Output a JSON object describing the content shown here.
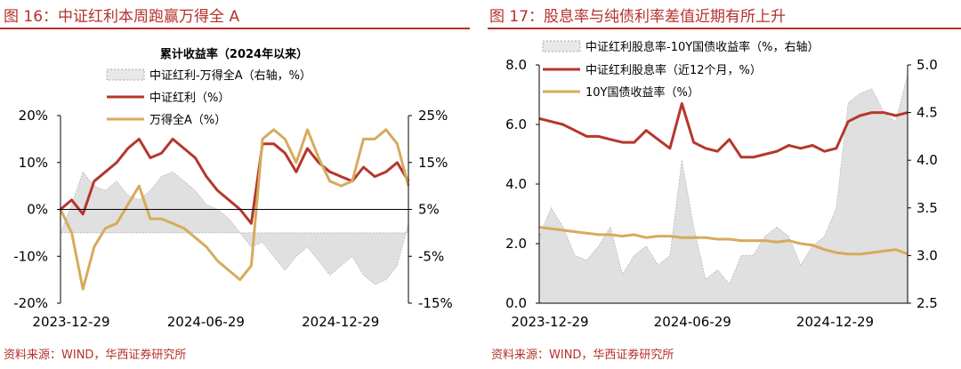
{
  "left": {
    "title": "图 16：中证红利本周跑赢万得全 A",
    "source": "资料来源：WIND，华西证券研究所"
  },
  "right": {
    "title": "图 17：股息率与纯债利率差值近期有所上升",
    "source": "资料来源：WIND，华西证券研究所"
  },
  "colors": {
    "dividend": "#b5372c",
    "wind": "#d6ab5c",
    "area": "#e0e0e0",
    "accent": "#b5302a"
  },
  "chart_data": [
    {
      "type": "line",
      "title": "累计收益率（2024年以来）",
      "x_tick_labels": [
        "2023-12-29",
        "2024-06-29",
        "2024-12-29"
      ],
      "y_left": {
        "ticks": [
          20,
          10,
          0,
          -10,
          -20
        ],
        "tick_labels": [
          "20%",
          "10%",
          "0%",
          "-10%",
          "-20%"
        ],
        "range": [
          -20,
          20
        ]
      },
      "y_right": {
        "ticks": [
          25,
          15,
          5,
          -5,
          -15
        ],
        "tick_labels": [
          "25%",
          "15%",
          "5%",
          "-5%",
          "-15%"
        ],
        "range": [
          -15,
          25
        ]
      },
      "legend": [
        "中证红利-万得全A（右轴，%）",
        "中证红利（%）",
        "万得全A（%）"
      ],
      "grid": false,
      "x_months": [
        0,
        0.5,
        1,
        1.5,
        2,
        2.5,
        3,
        3.5,
        4,
        4.5,
        5,
        5.5,
        6,
        6.5,
        7,
        7.5,
        8,
        8.5,
        9,
        9.5,
        10,
        10.5,
        11,
        11.5,
        12,
        12.5,
        13,
        13.5,
        14,
        14.5,
        15,
        15.5
      ],
      "series": [
        {
          "name": "中证红利-万得全A（右轴，%）",
          "kind": "area",
          "axis": "right",
          "values": [
            0,
            6,
            13,
            10,
            9,
            11,
            8,
            7,
            9,
            12,
            13,
            11,
            9,
            6,
            5,
            3,
            0,
            -3,
            -2,
            -5,
            -8,
            -5,
            -3,
            -6,
            -9,
            -7,
            -5,
            -9,
            -11,
            -10,
            -7,
            2
          ]
        },
        {
          "name": "中证红利（%）",
          "kind": "line",
          "axis": "left",
          "values": [
            0,
            2,
            -1,
            6,
            8,
            10,
            13,
            15,
            11,
            12,
            15,
            13,
            11,
            7,
            4,
            2,
            0,
            -3,
            14,
            14,
            12,
            8,
            13,
            10,
            8,
            7,
            6,
            9,
            7,
            8,
            10,
            6
          ]
        },
        {
          "name": "万得全A（%）",
          "kind": "line",
          "axis": "left",
          "values": [
            0,
            -5,
            -17,
            -8,
            -4,
            -3,
            1,
            5,
            -2,
            -2,
            -3,
            -4,
            -6,
            -8,
            -11,
            -13,
            -15,
            -12,
            15,
            17,
            15,
            10,
            17,
            11,
            6,
            5,
            6,
            15,
            15,
            17,
            14,
            5
          ]
        }
      ]
    },
    {
      "type": "line",
      "x_tick_labels": [
        "2023-12-29",
        "2024-06-29",
        "2024-12-29"
      ],
      "y_left": {
        "ticks": [
          8.0,
          6.0,
          4.0,
          2.0,
          0.0
        ],
        "tick_labels": [
          "8.0",
          "6.0",
          "4.0",
          "2.0",
          "0.0"
        ],
        "range": [
          0,
          8
        ]
      },
      "y_right": {
        "ticks": [
          5.0,
          4.5,
          4.0,
          3.5,
          3.0,
          2.5
        ],
        "tick_labels": [
          "5.0",
          "4.5",
          "4.0",
          "3.5",
          "3.0",
          "2.5"
        ],
        "range": [
          2.5,
          5.0
        ]
      },
      "legend": [
        "中证红利股息率-10Y国债收益率（%，右轴）",
        "中证红利股息率（近12个月，%）",
        "10Y国债收益率（%）"
      ],
      "grid": false,
      "x_months": [
        0,
        0.5,
        1,
        1.5,
        2,
        2.5,
        3,
        3.5,
        4,
        4.5,
        5,
        5.5,
        6,
        6.5,
        7,
        7.5,
        8,
        8.5,
        9,
        9.5,
        10,
        10.5,
        11,
        11.5,
        12,
        12.5,
        13,
        13.5,
        14,
        14.5,
        15,
        15.5
      ],
      "series": [
        {
          "name": "中证红利股息率-10Y国债收益率（%，右轴）",
          "kind": "area",
          "axis": "right",
          "values": [
            3.2,
            3.5,
            3.3,
            3.0,
            2.95,
            3.1,
            3.3,
            2.8,
            3.0,
            3.1,
            2.9,
            3.0,
            4.0,
            3.3,
            2.75,
            2.85,
            2.7,
            3.0,
            3.0,
            3.2,
            3.3,
            3.2,
            2.9,
            3.1,
            3.2,
            3.5,
            4.6,
            4.7,
            4.75,
            4.5,
            4.4,
            4.9
          ]
        },
        {
          "name": "中证红利股息率（近12个月，%）",
          "kind": "line",
          "axis": "left",
          "values": [
            6.2,
            6.1,
            6.0,
            5.8,
            5.6,
            5.6,
            5.5,
            5.4,
            5.4,
            5.8,
            5.5,
            5.2,
            6.7,
            5.4,
            5.2,
            5.1,
            5.5,
            4.9,
            4.9,
            5.0,
            5.1,
            5.3,
            5.2,
            5.3,
            5.1,
            5.2,
            6.1,
            6.3,
            6.4,
            6.4,
            6.3,
            6.4
          ]
        },
        {
          "name": "10Y国债收益率（%）",
          "kind": "line",
          "axis": "left",
          "values": [
            2.55,
            2.5,
            2.45,
            2.4,
            2.35,
            2.3,
            2.3,
            2.25,
            2.3,
            2.2,
            2.25,
            2.25,
            2.2,
            2.2,
            2.2,
            2.15,
            2.15,
            2.1,
            2.1,
            2.1,
            2.05,
            2.1,
            2.0,
            1.95,
            1.8,
            1.7,
            1.65,
            1.65,
            1.7,
            1.75,
            1.8,
            1.65
          ]
        }
      ]
    }
  ]
}
